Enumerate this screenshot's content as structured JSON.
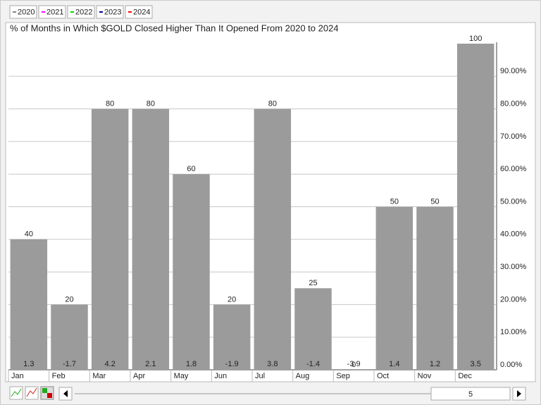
{
  "chart_data": {
    "type": "bar",
    "title": "% of Months in Which $GOLD Closed Higher Than It Opened From 2020 to 2024",
    "legend_items": [
      {
        "name": "2020",
        "color": "#888888"
      },
      {
        "name": "2021",
        "color": "#ff00ff"
      },
      {
        "name": "2022",
        "color": "#00dd00"
      },
      {
        "name": "2023",
        "color": "#000099"
      },
      {
        "name": "2024",
        "color": "#ff0000"
      }
    ],
    "categories": [
      "Jan",
      "Feb",
      "Mar",
      "Apr",
      "May",
      "Jun",
      "Jul",
      "Aug",
      "Sep",
      "Oct",
      "Nov",
      "Dec"
    ],
    "values": [
      40,
      20,
      80,
      80,
      60,
      20,
      80,
      25,
      0,
      50,
      50,
      100
    ],
    "average_change": [
      1.3,
      -1.7,
      4.2,
      2.1,
      1.8,
      -1.9,
      3.8,
      -1.4,
      -3.9,
      1.4,
      1.2,
      3.5
    ],
    "color": "#9b9b9b",
    "ylim": [
      0,
      100
    ],
    "yticks": [
      {
        "value": 0,
        "label": "0.00%"
      },
      {
        "value": 10,
        "label": "10.00%"
      },
      {
        "value": 20,
        "label": "20.00%"
      },
      {
        "value": 30,
        "label": "30.00%"
      },
      {
        "value": 40,
        "label": "40.00%"
      },
      {
        "value": 50,
        "label": "50.00%"
      },
      {
        "value": 60,
        "label": "60.00%"
      },
      {
        "value": 70,
        "label": "70.00%"
      },
      {
        "value": 80,
        "label": "80.00%"
      },
      {
        "value": 90,
        "label": "90.00%"
      }
    ],
    "grid": true
  },
  "controls": {
    "period": 5
  }
}
